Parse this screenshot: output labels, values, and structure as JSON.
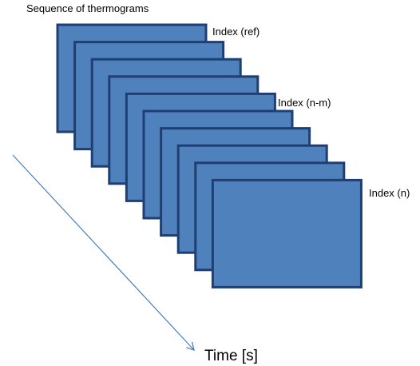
{
  "diagram": {
    "title": "Sequence of thermograms",
    "frame_count": 10,
    "labels": {
      "ref": "Index (ref)",
      "n_minus_m": "Index (n-m)",
      "n": "Index (n)"
    },
    "time_axis_label": "Time [s]"
  },
  "colors": {
    "frame_fill": "#4f81bd",
    "frame_stroke": "#1f3f73",
    "arrow": "#4a7ebb",
    "text": "#000000"
  }
}
